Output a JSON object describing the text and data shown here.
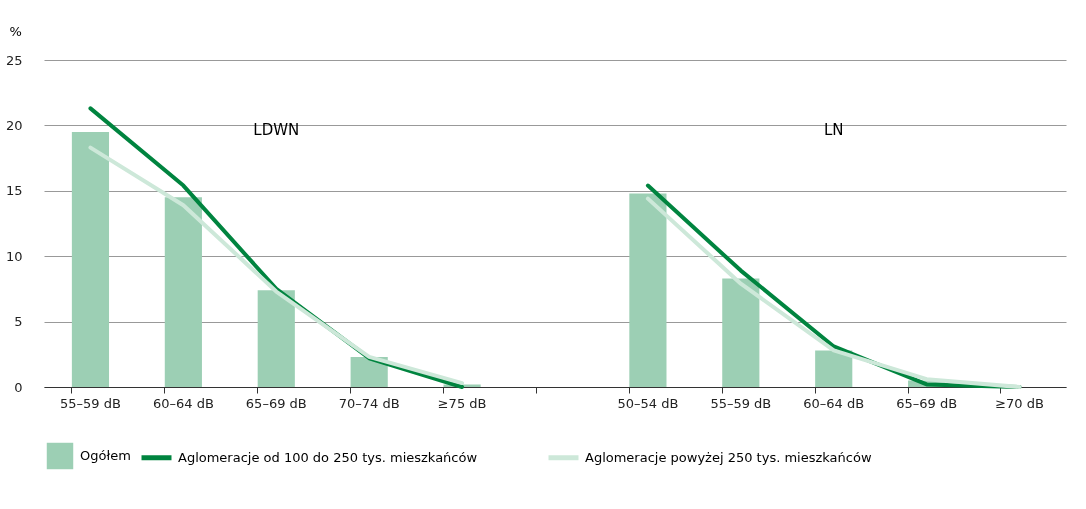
{
  "chart_data": {
    "type": "bar",
    "ylabel": "%",
    "categories": [
      "55–59 dB",
      "60–64 dB",
      "65–69 dB",
      "70–74 dB",
      "≥75 dB",
      null,
      "50–54 dB",
      "55–59 dB",
      "60–64 dB",
      "65–69 dB",
      "≥70 dB"
    ],
    "series": [
      {
        "name": "Ogółem",
        "color": "#9ccfb4",
        "values": [
          19.5,
          14.5,
          7.4,
          2.3,
          0.2,
          null,
          14.8,
          8.3,
          2.8,
          0.5,
          0
        ]
      },
      {
        "name": "Aglomeracje od 100 do 250 tys. mieszkańców",
        "type": "line",
        "color": "#00843f",
        "values": [
          21.3,
          15.4,
          7.5,
          2.2,
          0,
          null,
          15.4,
          8.9,
          3.1,
          0.2,
          0
        ]
      },
      {
        "name": "Aglomeracje powyżej 250 tys. mieszkańców",
        "type": "line",
        "color": "#cde8d9",
        "values": [
          18.3,
          13.9,
          7.3,
          2.3,
          0.3,
          null,
          14.4,
          7.9,
          2.8,
          0.6,
          0
        ]
      }
    ],
    "annotations": [
      "LDWN",
      "LN"
    ],
    "ylim": [
      0,
      25
    ],
    "yticks": [
      0,
      5,
      10,
      15,
      20,
      25
    ],
    "grid": "y",
    "legend": "bottom"
  }
}
